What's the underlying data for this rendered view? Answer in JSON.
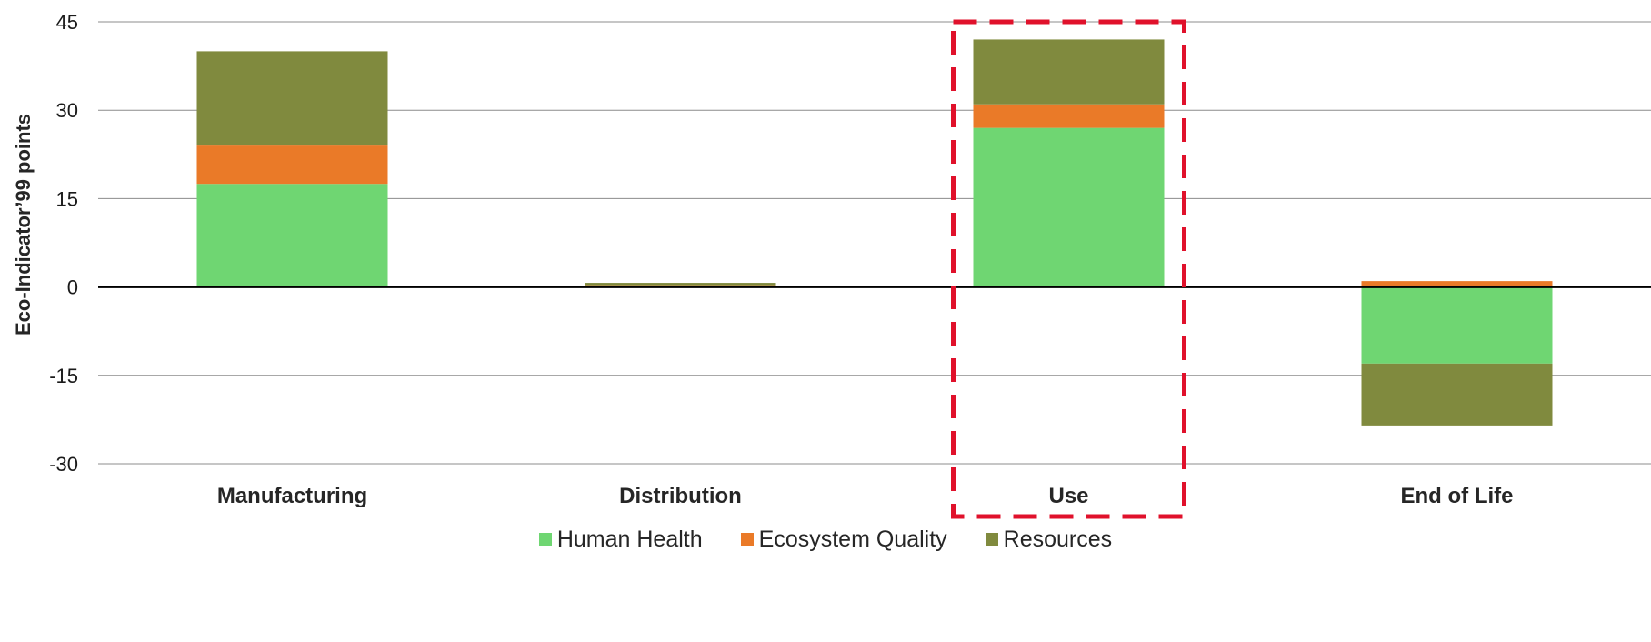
{
  "chart_data": {
    "type": "bar",
    "stacked": true,
    "title": "",
    "xlabel": "",
    "ylabel": "Eco-Indicator’99 points",
    "ylim": [
      -30,
      45
    ],
    "yticks": [
      "45",
      "30",
      "15",
      "0",
      "-15",
      "-30"
    ],
    "grid": true,
    "legend_position": "bottom",
    "categories": [
      "Manufacturing",
      "Distribution",
      "Use",
      "End of Life"
    ],
    "series": [
      {
        "name": "Human Health",
        "color": "#6fd672",
        "values": [
          17.5,
          0,
          27,
          -13
        ]
      },
      {
        "name": "Ecosystem Quality",
        "color": "#ea7a28",
        "values": [
          6.5,
          0.3,
          4,
          1
        ]
      },
      {
        "name": "Resources",
        "color": "#808a3e",
        "values": [
          16,
          0.4,
          11,
          -10.5
        ]
      }
    ],
    "highlight": {
      "category": "Use",
      "style": "dashed-box",
      "color": "#e0112b"
    }
  }
}
